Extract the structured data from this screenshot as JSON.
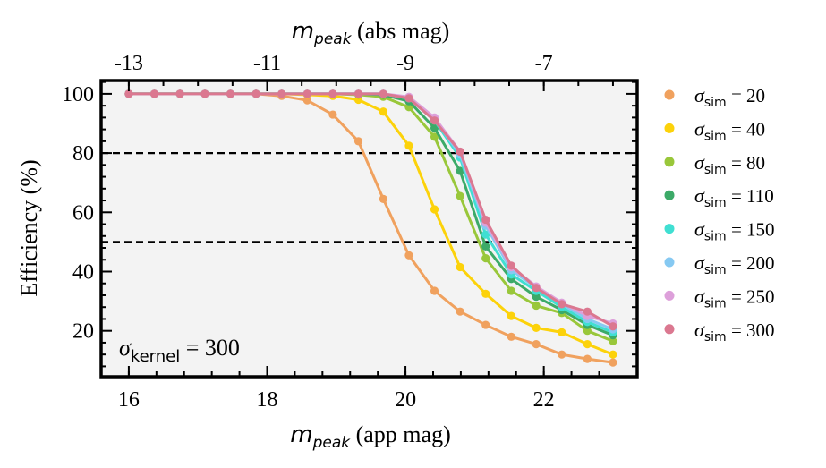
{
  "chart_data": {
    "type": "line",
    "xlabel": {
      "math": "m",
      "sub": "peak",
      "rest": " (app mag)"
    },
    "xlabel_top": {
      "math": "m",
      "sub": "peak",
      "rest": " (abs mag)"
    },
    "ylabel": "Efficiency (%)",
    "xlim": [
      15.6,
      23.35
    ],
    "ylim": [
      4.5,
      104.5
    ],
    "x_ticks": [
      16,
      18,
      20,
      22
    ],
    "y_ticks": [
      20,
      40,
      60,
      80,
      100
    ],
    "top_ticks": [
      {
        "value": 16.0,
        "label": "-13"
      },
      {
        "value": 18.0,
        "label": "-11"
      },
      {
        "value": 20.0,
        "label": "-9"
      },
      {
        "value": 22.0,
        "label": "-7"
      }
    ],
    "hlines": [
      50,
      80
    ],
    "plot_bg": "#f3f3f3",
    "annotation": {
      "symbol": "σ",
      "sub": "kernel",
      "rest": " = 300"
    },
    "legend_position": "outside-right",
    "legend_symbol": "σ",
    "legend_sub": "sim",
    "series": [
      {
        "name": "= 20",
        "color": "#f0a15e",
        "x": [
          16.0,
          16.37,
          16.74,
          17.1,
          17.47,
          17.84,
          18.21,
          18.58,
          18.95,
          19.32,
          19.68,
          20.05,
          20.42,
          20.79,
          21.16,
          21.53,
          21.89,
          22.26,
          22.63,
          23.0
        ],
        "y": [
          100,
          100,
          100,
          100,
          100,
          100,
          99.3,
          97.8,
          93,
          84,
          64.5,
          45.5,
          33.5,
          26.5,
          22,
          18,
          15.5,
          12,
          10.5,
          9.3
        ]
      },
      {
        "name": "= 40",
        "color": "#fcd20a",
        "x": [
          16.0,
          16.37,
          16.74,
          17.1,
          17.47,
          17.84,
          18.21,
          18.58,
          18.95,
          19.32,
          19.68,
          20.05,
          20.42,
          20.79,
          21.16,
          21.53,
          21.89,
          22.26,
          22.63,
          23.0
        ],
        "y": [
          100,
          100,
          100,
          100,
          100,
          100,
          100,
          99.7,
          99.3,
          98,
          94,
          82.5,
          61,
          41.5,
          32.5,
          25,
          21,
          19.5,
          15.5,
          12
        ]
      },
      {
        "name": "= 80",
        "color": "#99c73a",
        "x": [
          16.0,
          16.37,
          16.74,
          17.1,
          17.47,
          17.84,
          18.21,
          18.58,
          18.95,
          19.32,
          19.68,
          20.05,
          20.42,
          20.79,
          21.16,
          21.53,
          21.89,
          22.26,
          22.63,
          23.0
        ],
        "y": [
          100,
          100,
          100,
          100,
          100,
          100,
          100,
          100,
          100,
          99.7,
          99,
          95.5,
          85.5,
          65.5,
          44.5,
          33.5,
          28.5,
          26,
          20,
          16.5
        ]
      },
      {
        "name": "= 110",
        "color": "#3caa68",
        "x": [
          16.0,
          16.37,
          16.74,
          17.1,
          17.47,
          17.84,
          18.21,
          18.58,
          18.95,
          19.32,
          19.68,
          20.05,
          20.42,
          20.79,
          21.16,
          21.53,
          21.89,
          22.26,
          22.63,
          23.0
        ],
        "y": [
          100,
          100,
          100,
          100,
          100,
          100,
          100,
          100,
          100,
          100,
          99.7,
          97.5,
          88.5,
          74,
          48.5,
          37.5,
          31.5,
          27,
          22,
          18.5
        ]
      },
      {
        "name": "= 150",
        "color": "#40dfd2",
        "x": [
          16.0,
          16.37,
          16.74,
          17.1,
          17.47,
          17.84,
          18.21,
          18.58,
          18.95,
          19.32,
          19.68,
          20.05,
          20.42,
          20.79,
          21.16,
          21.53,
          21.89,
          22.26,
          22.63,
          23.0
        ],
        "y": [
          100,
          100,
          100,
          100,
          100,
          100,
          100,
          100,
          100,
          100,
          100,
          98.5,
          91,
          78.5,
          52.5,
          39,
          33.5,
          28,
          23,
          19.5
        ]
      },
      {
        "name": "= 200",
        "color": "#86c9f2",
        "x": [
          16.0,
          16.37,
          16.74,
          17.1,
          17.47,
          17.84,
          18.21,
          18.58,
          18.95,
          19.32,
          19.68,
          20.05,
          20.42,
          20.79,
          21.16,
          21.53,
          21.89,
          22.26,
          22.63,
          23.0
        ],
        "y": [
          100,
          100,
          100,
          100,
          100,
          100,
          100,
          100,
          100,
          100,
          100,
          98.5,
          91.5,
          79.5,
          55.5,
          40.5,
          34.5,
          29,
          24,
          20.5
        ]
      },
      {
        "name": "= 250",
        "color": "#dda0da",
        "x": [
          16.0,
          16.37,
          16.74,
          17.1,
          17.47,
          17.84,
          18.21,
          18.58,
          18.95,
          19.32,
          19.68,
          20.05,
          20.42,
          20.79,
          21.16,
          21.53,
          21.89,
          22.26,
          22.63,
          23.0
        ],
        "y": [
          100,
          100,
          100,
          100,
          100,
          100,
          100,
          100,
          100,
          100,
          100,
          99,
          92,
          80.5,
          56.5,
          41.5,
          35,
          29.5,
          25,
          22.5
        ]
      },
      {
        "name": "= 300",
        "color": "#db7890",
        "x": [
          16.0,
          16.37,
          16.74,
          17.1,
          17.47,
          17.84,
          18.21,
          18.58,
          18.95,
          19.32,
          19.68,
          20.05,
          20.42,
          20.79,
          21.16,
          21.53,
          21.89,
          22.26,
          22.63,
          23.0
        ],
        "y": [
          100,
          100,
          100,
          100,
          100,
          100,
          100,
          100,
          100,
          100,
          100,
          98.5,
          91,
          80.5,
          57.5,
          42,
          34.5,
          29,
          26.5,
          21.5
        ]
      }
    ]
  }
}
